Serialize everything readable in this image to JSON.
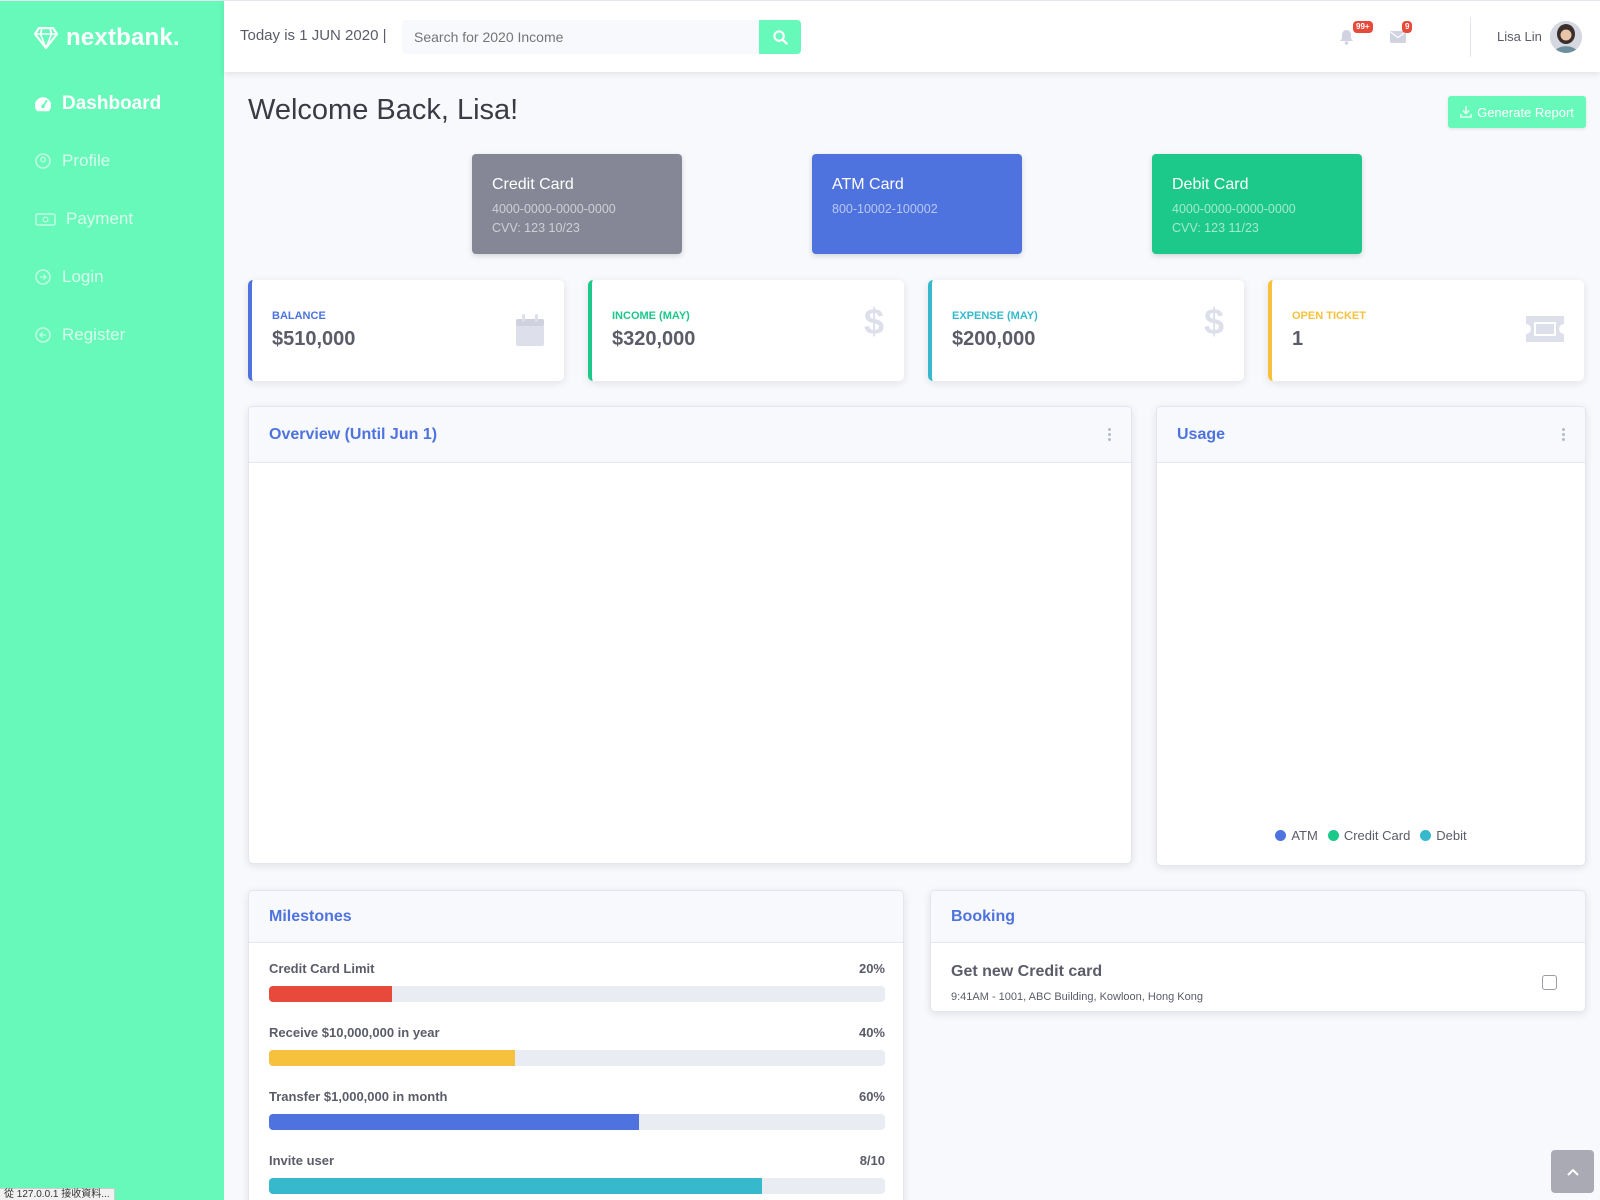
{
  "brand": {
    "name": "nextbank."
  },
  "sidebar": {
    "items": [
      {
        "label": "Dashboard",
        "icon": "tachometer-icon",
        "active": true
      },
      {
        "label": "Profile",
        "icon": "user-circle-icon"
      },
      {
        "label": "Payment",
        "icon": "money-bill-icon"
      },
      {
        "label": "Login",
        "icon": "sign-in-icon"
      },
      {
        "label": "Register",
        "icon": "sign-out-icon"
      }
    ]
  },
  "topbar": {
    "today": "Today is 1 JUN 2020 |",
    "search_placeholder": "Search for 2020 Income",
    "alerts_badge": "99+",
    "messages_badge": "9",
    "username": "Lisa Lin"
  },
  "page": {
    "title": "Welcome Back, Lisa!",
    "report_button": "Generate Report"
  },
  "cards": [
    {
      "title": "Credit Card",
      "line1": "4000-0000-0000-0000",
      "line2": "CVV: 123 10/23",
      "color": "#858796"
    },
    {
      "title": "ATM Card",
      "line1": "800-10002-100002",
      "line2": "",
      "color": "#4e73df"
    },
    {
      "title": "Debit Card",
      "line1": "4000-0000-0000-0000",
      "line2": "CVV: 123 11/23",
      "color": "#1cc88a"
    }
  ],
  "stats": [
    {
      "label": "BALANCE",
      "value": "$510,000",
      "color": "#4e73df",
      "icon": "calendar-icon"
    },
    {
      "label": "INCOME (MAY)",
      "value": "$320,000",
      "color": "#1cc88a",
      "icon": "dollar-icon"
    },
    {
      "label": "EXPENSE (MAY)",
      "value": "$200,000",
      "color": "#36b9cc",
      "icon": "dollar-icon"
    },
    {
      "label": "OPEN TICKET",
      "value": "1",
      "color": "#f6c23e",
      "icon": "ticket-icon"
    }
  ],
  "overview": {
    "title": "Overview (Until Jun 1)"
  },
  "usage": {
    "title": "Usage",
    "legend": [
      {
        "label": "ATM",
        "color": "#4e73df"
      },
      {
        "label": "Credit Card",
        "color": "#1cc88a"
      },
      {
        "label": "Debit",
        "color": "#36b9cc"
      }
    ]
  },
  "milestones": {
    "title": "Milestones",
    "items": [
      {
        "label": "Credit Card Limit",
        "value_text": "20%",
        "progress": 0.2,
        "color": "#e74a3b"
      },
      {
        "label": "Receive $10,000,000 in year",
        "value_text": "40%",
        "progress": 0.4,
        "color": "#f6c23e"
      },
      {
        "label": "Transfer $1,000,000 in month",
        "value_text": "60%",
        "progress": 0.6,
        "color": "#4e73df"
      },
      {
        "label": "Invite user",
        "value_text": "8/10",
        "progress": 0.8,
        "color": "#36b9cc"
      }
    ]
  },
  "booking": {
    "title": "Booking",
    "item_title": "Get new Credit card",
    "item_sub": "9:41AM - 1001, ABC Building, Kowloon, Hong Kong"
  },
  "status_bar": "從 127.0.0.1 接收資料..."
}
